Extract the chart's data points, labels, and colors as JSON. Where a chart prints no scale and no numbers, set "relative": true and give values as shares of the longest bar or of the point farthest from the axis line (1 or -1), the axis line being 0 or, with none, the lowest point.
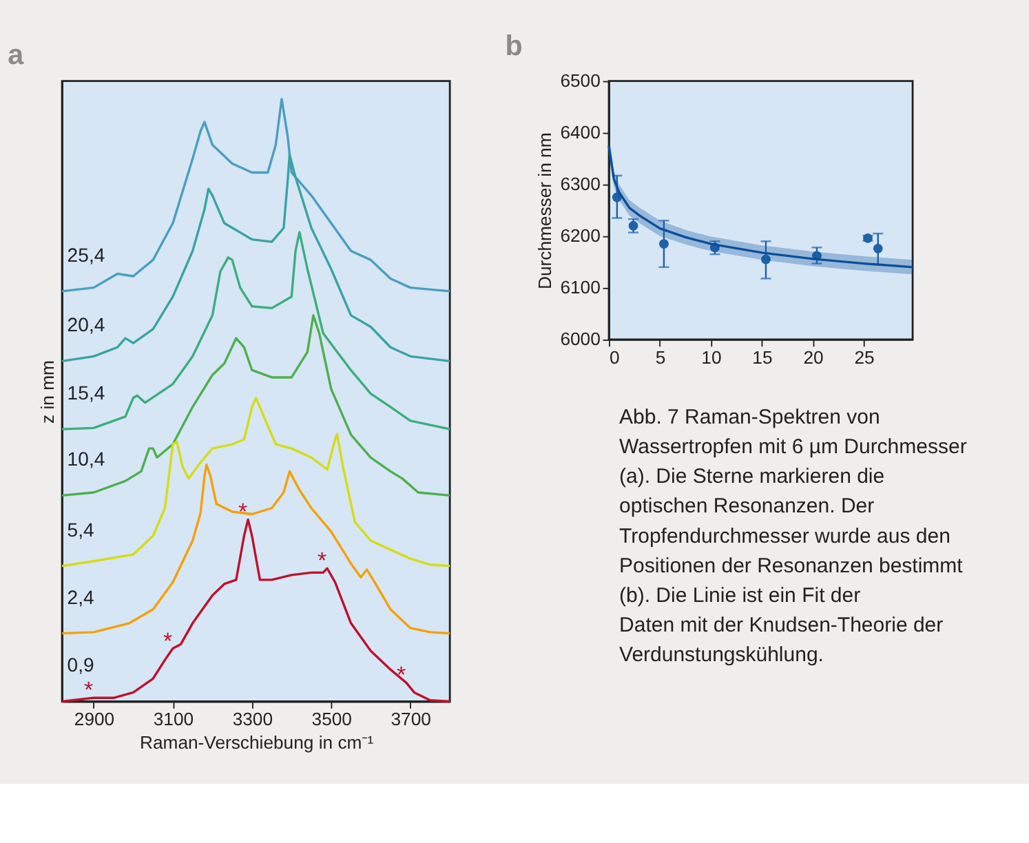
{
  "chart_data": [
    {
      "type": "line",
      "title": "a",
      "xlabel": "Raman-Verschiebung in cm⁻¹",
      "ylabel": "z in mm",
      "relative": true,
      "tick_labels": "x",
      "xlim": [
        2820,
        3800
      ],
      "xticks": [
        2900,
        3100,
        3300,
        3500,
        3700
      ],
      "series": [
        {
          "name": "25,4",
          "color": "#4a9ec0",
          "x": [
            2820,
            2900,
            2960,
            3000,
            3050,
            3100,
            3150,
            3170,
            3180,
            3200,
            3250,
            3300,
            3340,
            3360,
            3375,
            3390,
            3400,
            3450,
            3500,
            3550,
            3600,
            3650,
            3700,
            3800
          ],
          "values": [
            0.681,
            0.687,
            0.71,
            0.706,
            0.733,
            0.794,
            0.901,
            0.947,
            0.962,
            0.924,
            0.893,
            0.878,
            0.878,
            0.924,
            1.0,
            0.939,
            0.878,
            0.84,
            0.794,
            0.748,
            0.733,
            0.702,
            0.687,
            0.681
          ]
        },
        {
          "name": "20,4",
          "color": "#3aa3a0",
          "x": [
            2820,
            2900,
            2960,
            2980,
            3000,
            3050,
            3100,
            3150,
            3180,
            3190,
            3200,
            3230,
            3300,
            3350,
            3380,
            3390,
            3395,
            3410,
            3450,
            3500,
            3550,
            3600,
            3650,
            3700,
            3800
          ],
          "values": [
            0.565,
            0.573,
            0.588,
            0.603,
            0.595,
            0.618,
            0.672,
            0.748,
            0.817,
            0.851,
            0.84,
            0.794,
            0.767,
            0.763,
            0.786,
            0.863,
            0.908,
            0.87,
            0.786,
            0.718,
            0.641,
            0.622,
            0.588,
            0.573,
            0.565
          ]
        },
        {
          "name": "15,4",
          "color": "#3cae7c",
          "x": [
            2820,
            2900,
            2980,
            3000,
            3010,
            3030,
            3100,
            3150,
            3200,
            3220,
            3240,
            3250,
            3270,
            3300,
            3350,
            3400,
            3410,
            3420,
            3440,
            3480,
            3550,
            3600,
            3650,
            3700,
            3800
          ],
          "values": [
            0.452,
            0.454,
            0.473,
            0.504,
            0.508,
            0.496,
            0.527,
            0.573,
            0.641,
            0.714,
            0.737,
            0.733,
            0.687,
            0.656,
            0.653,
            0.672,
            0.748,
            0.779,
            0.718,
            0.611,
            0.55,
            0.511,
            0.489,
            0.466,
            0.452
          ]
        },
        {
          "name": "10,4",
          "color": "#4cb04c",
          "x": [
            2820,
            2900,
            2980,
            3020,
            3040,
            3050,
            3060,
            3100,
            3150,
            3200,
            3230,
            3260,
            3280,
            3300,
            3350,
            3400,
            3440,
            3455,
            3470,
            3500,
            3550,
            3600,
            3650,
            3680,
            3720,
            3800
          ],
          "values": [
            0.342,
            0.347,
            0.366,
            0.382,
            0.42,
            0.42,
            0.405,
            0.427,
            0.489,
            0.542,
            0.561,
            0.603,
            0.588,
            0.55,
            0.538,
            0.538,
            0.58,
            0.641,
            0.611,
            0.519,
            0.443,
            0.405,
            0.382,
            0.37,
            0.347,
            0.342
          ]
        },
        {
          "name": "5,4",
          "color": "#d6dc14",
          "x": [
            2820,
            2900,
            3000,
            3050,
            3080,
            3090,
            3100,
            3110,
            3125,
            3140,
            3170,
            3200,
            3250,
            3280,
            3300,
            3310,
            3330,
            3360,
            3400,
            3450,
            3490,
            3510,
            3515,
            3530,
            3560,
            3600,
            3650,
            3700,
            3750,
            3800
          ],
          "values": [
            0.225,
            0.233,
            0.244,
            0.275,
            0.321,
            0.374,
            0.427,
            0.431,
            0.389,
            0.37,
            0.397,
            0.42,
            0.427,
            0.435,
            0.489,
            0.504,
            0.473,
            0.427,
            0.42,
            0.405,
            0.385,
            0.435,
            0.444,
            0.389,
            0.298,
            0.267,
            0.252,
            0.237,
            0.227,
            0.225
          ]
        },
        {
          "name": "2,4",
          "color": "#f5a000",
          "x": [
            2820,
            2900,
            2990,
            3050,
            3100,
            3150,
            3170,
            3180,
            3185,
            3195,
            3210,
            3250,
            3300,
            3350,
            3380,
            3395,
            3420,
            3450,
            3500,
            3550,
            3575,
            3590,
            3610,
            3650,
            3700,
            3750,
            3800
          ],
          "values": [
            0.113,
            0.115,
            0.13,
            0.153,
            0.198,
            0.267,
            0.313,
            0.374,
            0.393,
            0.374,
            0.328,
            0.315,
            0.311,
            0.321,
            0.347,
            0.382,
            0.351,
            0.321,
            0.282,
            0.229,
            0.206,
            0.219,
            0.198,
            0.153,
            0.122,
            0.115,
            0.113
          ]
        },
        {
          "name": "0,9",
          "color": "#c0102a",
          "x": [
            2820,
            2900,
            2950,
            3000,
            3050,
            3080,
            3100,
            3120,
            3150,
            3200,
            3230,
            3260,
            3280,
            3290,
            3300,
            3320,
            3350,
            3400,
            3450,
            3480,
            3490,
            3510,
            3550,
            3600,
            3650,
            3690,
            3710,
            3750,
            3800
          ],
          "values": [
            0,
            0.006,
            0.006,
            0.015,
            0.038,
            0.069,
            0.088,
            0.095,
            0.13,
            0.176,
            0.195,
            0.202,
            0.275,
            0.302,
            0.275,
            0.202,
            0.202,
            0.21,
            0.214,
            0.214,
            0.221,
            0.198,
            0.13,
            0.084,
            0.053,
            0.031,
            0.015,
            0.002,
            0
          ]
        }
      ],
      "annotations": [
        {
          "text": "*",
          "x": 2900,
          "y": 0.006
        },
        {
          "text": "*",
          "x": 3100,
          "y": 0.088
        },
        {
          "text": "*",
          "x": 3290,
          "y": 0.302
        },
        {
          "text": "*",
          "x": 3490,
          "y": 0.221
        },
        {
          "text": "*",
          "x": 3690,
          "y": 0.031
        }
      ]
    },
    {
      "type": "scatter",
      "title": "b",
      "ylabel": "Durchmesser in nm",
      "xlim": [
        0,
        29.8
      ],
      "xticks": [
        0,
        5,
        10,
        15,
        20,
        25
      ],
      "ylim": [
        6000,
        6500
      ],
      "yticks": [
        6000,
        6100,
        6200,
        6300,
        6400,
        6500
      ],
      "series": [
        {
          "type": "scatter",
          "marker": "circle",
          "color": "#1f62a8",
          "x": [
            0.8,
            2.4,
            5.4,
            10.4,
            15.4,
            20.4,
            25.4,
            26.4
          ],
          "values": [
            6275,
            6220,
            6185,
            6178,
            6155,
            6162,
            6196,
            6176
          ],
          "errors": [
            [
              6235,
              6317
            ],
            [
              6207,
              6233
            ],
            [
              6140,
              6230
            ],
            [
              6165,
              6190
            ],
            [
              6118,
              6190
            ],
            [
              6147,
              6178
            ],
            [
              6191,
              6201
            ],
            [
              6145,
              6205
            ]
          ]
        },
        {
          "type": "line",
          "color": "#0b4f9c",
          "x": [
            0,
            0.5,
            1,
            2,
            3,
            5,
            7.5,
            10,
            15,
            20,
            25,
            29.8
          ],
          "values": [
            6375,
            6310,
            6285,
            6255,
            6240,
            6215,
            6198,
            6185,
            6168,
            6156,
            6147,
            6140
          ],
          "lower": [
            6355,
            6295,
            6270,
            6240,
            6225,
            6200,
            6184,
            6171,
            6154,
            6142,
            6133,
            6126
          ],
          "upper": [
            6395,
            6325,
            6300,
            6270,
            6255,
            6230,
            6212,
            6199,
            6182,
            6170,
            6161,
            6154
          ]
        }
      ],
      "annotations": [
        "Abb. 7 Raman-Spektren von Wassertropfen mit 6 µm Durchmesser (a). Die Sterne markieren die optischen Resonanzen. Der Tropfendurchmesser wurde aus den Positionen der Resonanzen bestimmt (b). Die Linie ist ein Fit der Daten mit der Knudsen-Theorie der Verdunstungskühlung."
      ]
    }
  ]
}
